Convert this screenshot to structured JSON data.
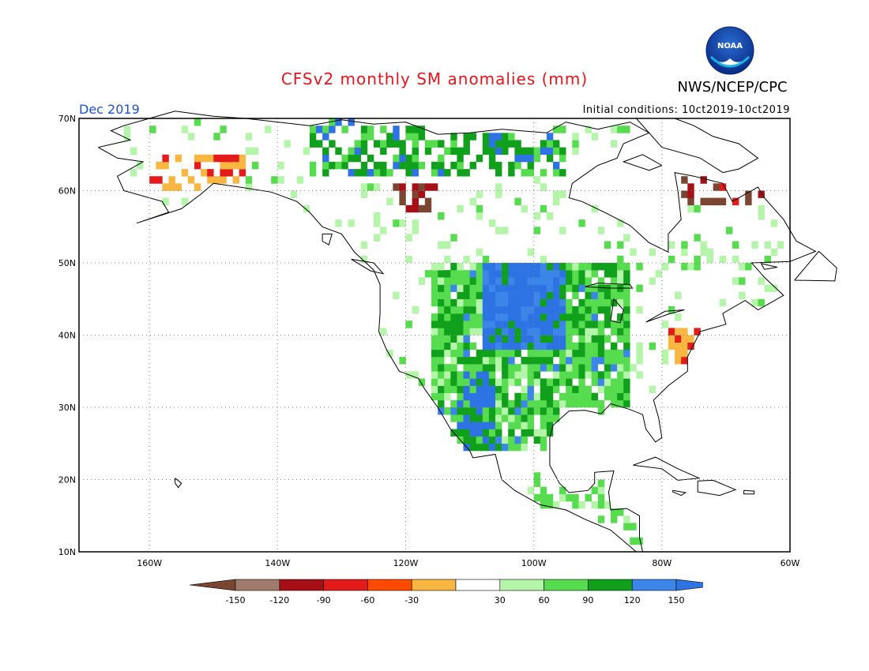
{
  "header": {
    "title": "CFSv2 monthly SM anomalies (mm)",
    "agency": "NWS/NCEP/CPC",
    "logo_text": "NOAA",
    "valid_month": "Dec 2019",
    "initial_conditions": "Initial conditions: 10ct2019-10ct2019"
  },
  "map": {
    "projection": "equirectangular",
    "lon_range": [
      -171,
      -60
    ],
    "lat_range": [
      10,
      70
    ],
    "lat_labels": [
      {
        "value": 70,
        "text": "70N"
      },
      {
        "value": 60,
        "text": "60N"
      },
      {
        "value": 50,
        "text": "50N"
      },
      {
        "value": 40,
        "text": "40N"
      },
      {
        "value": 30,
        "text": "30N"
      },
      {
        "value": 20,
        "text": "20N"
      },
      {
        "value": 10,
        "text": "10N"
      }
    ],
    "lon_labels": [
      {
        "value": -160,
        "text": "160W"
      },
      {
        "value": -140,
        "text": "140W"
      },
      {
        "value": -120,
        "text": "120W"
      },
      {
        "value": -100,
        "text": "100W"
      },
      {
        "value": -80,
        "text": "80W"
      },
      {
        "value": -60,
        "text": "60W"
      }
    ],
    "grid": "dotted",
    "anomaly_regions": [
      {
        "name": "northern-plains",
        "class": "+120 to +150",
        "lon": [
          -108,
          -95
        ],
        "lat": [
          38,
          50
        ]
      },
      {
        "name": "southwest-mexico",
        "class": "+120 to +150",
        "lon": [
          -112,
          -106
        ],
        "lat": [
          24,
          35
        ]
      },
      {
        "name": "central-plains",
        "class": "+60 to +90",
        "lon": [
          -100,
          -88
        ],
        "lat": [
          30,
          40
        ]
      },
      {
        "name": "mid-atlantic",
        "class": "-30 to -60",
        "lon": [
          -79,
          -74
        ],
        "lat": [
          36,
          41
        ]
      },
      {
        "name": "alaska-south",
        "class": "-30 to -60",
        "lon": [
          -160,
          -145
        ],
        "lat": [
          60,
          65
        ]
      },
      {
        "name": "western-canada",
        "class": "-90 to -150",
        "lon": [
          -122,
          -115
        ],
        "lat": [
          57,
          61
        ]
      },
      {
        "name": "labrador",
        "class": "-120 to -150",
        "lon": [
          -78,
          -65
        ],
        "lat": [
          60,
          68
        ]
      }
    ]
  },
  "colorbar": {
    "labels": [
      "-150",
      "-120",
      "-90",
      "-60",
      "-30",
      "30",
      "60",
      "90",
      "120",
      "150"
    ],
    "colors": [
      "#7a4632",
      "#a07c6f",
      "#a50f15",
      "#e41b1b",
      "#ff4a00",
      "#f9b641",
      "#ffffff",
      "#b4f5aa",
      "#56dc4e",
      "#11a01c",
      "#3b86e8",
      "#2e73e4"
    ]
  }
}
